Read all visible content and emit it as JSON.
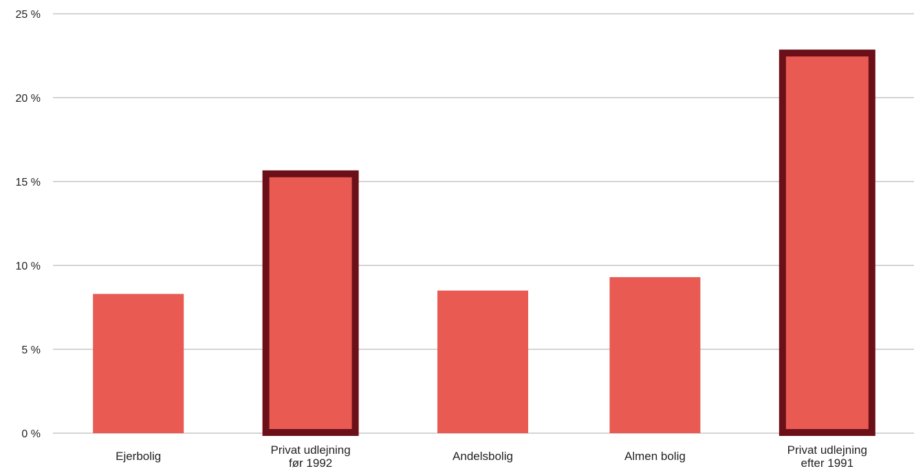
{
  "chart_data": {
    "type": "bar",
    "title": "",
    "xlabel": "",
    "ylabel": "",
    "ylim": [
      0,
      25
    ],
    "yticks": [
      0,
      5,
      10,
      15,
      20,
      25
    ],
    "ytick_labels": [
      "0 %",
      "5 %",
      "10 %",
      "15 %",
      "20 %",
      "25 %"
    ],
    "grid": true,
    "categories": [
      [
        "Ejerbolig"
      ],
      [
        "Privat udlejning",
        "før 1992"
      ],
      [
        "Andelsbolig"
      ],
      [
        "Almen bolig"
      ],
      [
        "Privat udlejning",
        "efter 1991"
      ]
    ],
    "values": [
      8.3,
      15.5,
      8.5,
      9.3,
      22.7
    ],
    "highlighted": [
      false,
      true,
      false,
      false,
      true
    ],
    "colors": {
      "bar": "#E85A52",
      "highlight_border": "#6B1019",
      "grid": "#AAAAAA"
    }
  }
}
